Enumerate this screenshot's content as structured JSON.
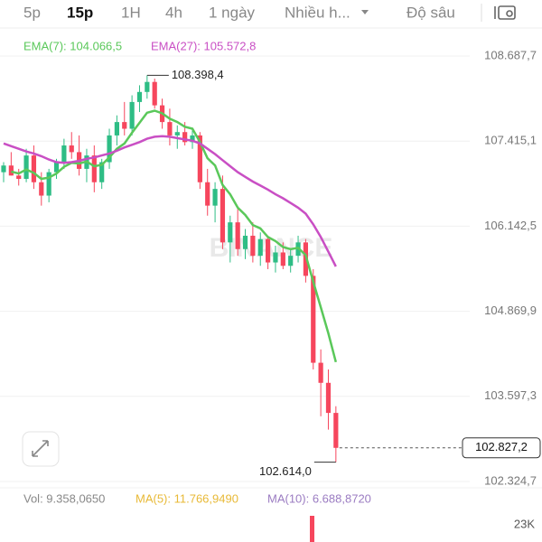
{
  "tabs": [
    "5p",
    "15p",
    "1H",
    "4h",
    "1 ngày",
    "Nhiều h...",
    "Độ sâu"
  ],
  "ema7_label": "EMA(7): 104.066,5",
  "ema27_label": "EMA(27): 105.572,8",
  "watermark": "BINANCE",
  "vol_label": "Vol: 9.358,0650",
  "ma5_label": "MA(5): 11.766,9490",
  "ma10_label": "MA(10): 6.688,8720",
  "volume_tick": {
    "value": 23000,
    "label": "23K"
  },
  "chart_data": {
    "type": "candlestick",
    "ylim": [
      102230,
      108985
    ],
    "yticks": [
      {
        "value": 108687.7,
        "label": "108.687,7"
      },
      {
        "value": 107415.1,
        "label": "107.415,1"
      },
      {
        "value": 106142.5,
        "label": "106.142,5"
      },
      {
        "value": 104869.9,
        "label": "104.869,9"
      },
      {
        "value": 103597.3,
        "label": "103.597,3"
      },
      {
        "value": 102324.7,
        "label": "102.324,7"
      }
    ],
    "grid": true,
    "up_color": "#2ebd85",
    "down_color": "#f6465d",
    "open": [
      106950,
      107050,
      106900,
      106850,
      107200,
      106800,
      106600,
      106950,
      107100,
      107350,
      107250,
      107000,
      107200,
      106800,
      107100,
      107500,
      107700,
      107600,
      108000,
      108150,
      108300,
      107950,
      107700,
      107500,
      107550,
      107400,
      107500,
      106800,
      106450,
      106700,
      105900,
      106200,
      105800,
      106000,
      105700,
      105950,
      105600,
      105750,
      105550,
      105700,
      105900,
      105400,
      104100,
      103800,
      103350
    ],
    "high": [
      107100,
      107250,
      107000,
      107300,
      107350,
      106950,
      107000,
      107150,
      107450,
      107550,
      107500,
      107300,
      107350,
      107150,
      107600,
      107800,
      108000,
      108100,
      108250,
      108398.4,
      108350,
      108050,
      107900,
      107650,
      107700,
      107600,
      107550,
      107000,
      106800,
      106900,
      106300,
      106400,
      106100,
      106200,
      106050,
      106000,
      105850,
      105900,
      105800,
      106000,
      105950,
      105500,
      104300,
      104000,
      103450
    ],
    "low": [
      106800,
      106900,
      106750,
      106800,
      106700,
      106450,
      106500,
      106850,
      107000,
      107150,
      106900,
      106800,
      106650,
      106700,
      107000,
      107350,
      107500,
      107500,
      107850,
      108050,
      107900,
      107600,
      107350,
      107300,
      107350,
      107300,
      106700,
      106300,
      106200,
      105800,
      105600,
      105700,
      105650,
      105600,
      105550,
      105500,
      105450,
      105500,
      105450,
      105600,
      105300,
      104000,
      103300,
      103100,
      102614
    ],
    "close": [
      107050,
      106900,
      106850,
      107200,
      106800,
      106600,
      106950,
      107100,
      107350,
      107250,
      107000,
      107200,
      106800,
      107100,
      107500,
      107700,
      107600,
      108000,
      108150,
      108300,
      107950,
      107700,
      107500,
      107550,
      107400,
      107500,
      106800,
      106450,
      106700,
      105900,
      106200,
      105800,
      106000,
      105700,
      105950,
      105600,
      105750,
      105550,
      105700,
      105900,
      105400,
      104100,
      103800,
      103350,
      102827.2
    ],
    "series": [
      {
        "name": "EMA(7)",
        "color": "#5ac85a",
        "values": [
          null,
          106960,
          106930,
          106990,
          106940,
          106850,
          106870,
          106930,
          107030,
          107090,
          107080,
          107110,
          107040,
          107060,
          107170,
          107300,
          107380,
          107540,
          107690,
          107840,
          107870,
          107830,
          107750,
          107700,
          107630,
          107600,
          107400,
          107160,
          107050,
          106760,
          106620,
          106420,
          106310,
          106160,
          106110,
          105980,
          105920,
          105830,
          105800,
          105820,
          105710,
          105310,
          104930,
          104540,
          104110
        ]
      },
      {
        "name": "EMA(27)",
        "color": "#c94fc4",
        "values": [
          107380,
          107340,
          107300,
          107260,
          107230,
          107190,
          107140,
          107100,
          107090,
          107100,
          107120,
          107150,
          107170,
          107200,
          107230,
          107270,
          107320,
          107360,
          107400,
          107450,
          107480,
          107490,
          107480,
          107460,
          107440,
          107420,
          107380,
          107300,
          107220,
          107130,
          107040,
          106950,
          106880,
          106810,
          106750,
          106690,
          106620,
          106560,
          106490,
          106420,
          106330,
          106170,
          105980,
          105760,
          105540
        ]
      }
    ],
    "high_marker": {
      "value": 108398.4,
      "label": "108.398,4"
    },
    "low_marker": {
      "value": 102614.0,
      "label": "102.614,0"
    },
    "last_price": {
      "value": 102827.2,
      "label": "102.827,2"
    }
  }
}
